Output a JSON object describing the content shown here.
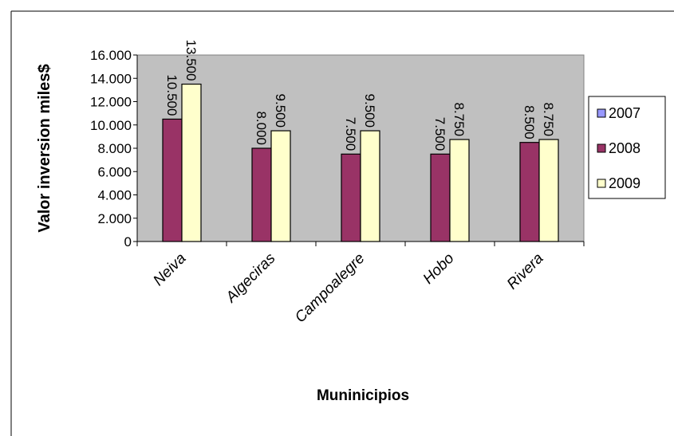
{
  "chart_data": {
    "type": "bar",
    "title": "",
    "xlabel": "Muninicipios",
    "ylabel": "Valor inversion miles$",
    "categories": [
      "Neiva",
      "Algeciras",
      "Campoalegre",
      "Hobo",
      "Rivera"
    ],
    "series": [
      {
        "name": "2007",
        "values": [
          null,
          null,
          null,
          null,
          null
        ],
        "color": "#9999ff"
      },
      {
        "name": "2008",
        "values": [
          10500,
          8000,
          7500,
          7500,
          8500
        ],
        "color": "#993366"
      },
      {
        "name": "2009",
        "values": [
          13500,
          9500,
          9500,
          8750,
          8750
        ],
        "color": "#ffffcc"
      }
    ],
    "data_labels": {
      "2008": [
        "10.500",
        "8.000",
        "7.500",
        "7.500",
        "8.500"
      ],
      "2009": [
        "13.500",
        "9.500",
        "9.500",
        "8.750",
        "8.750"
      ]
    },
    "ylim": [
      0,
      16000
    ],
    "yticks": [
      0,
      2000,
      4000,
      6000,
      8000,
      10000,
      12000,
      14000,
      16000
    ],
    "ytick_labels": [
      "0",
      "2.000",
      "4.000",
      "6.000",
      "8.000",
      "10.000",
      "12.000",
      "14.000",
      "16.000"
    ],
    "plot_background": "#c0c0c0",
    "grid": false,
    "legend_position": "right"
  }
}
